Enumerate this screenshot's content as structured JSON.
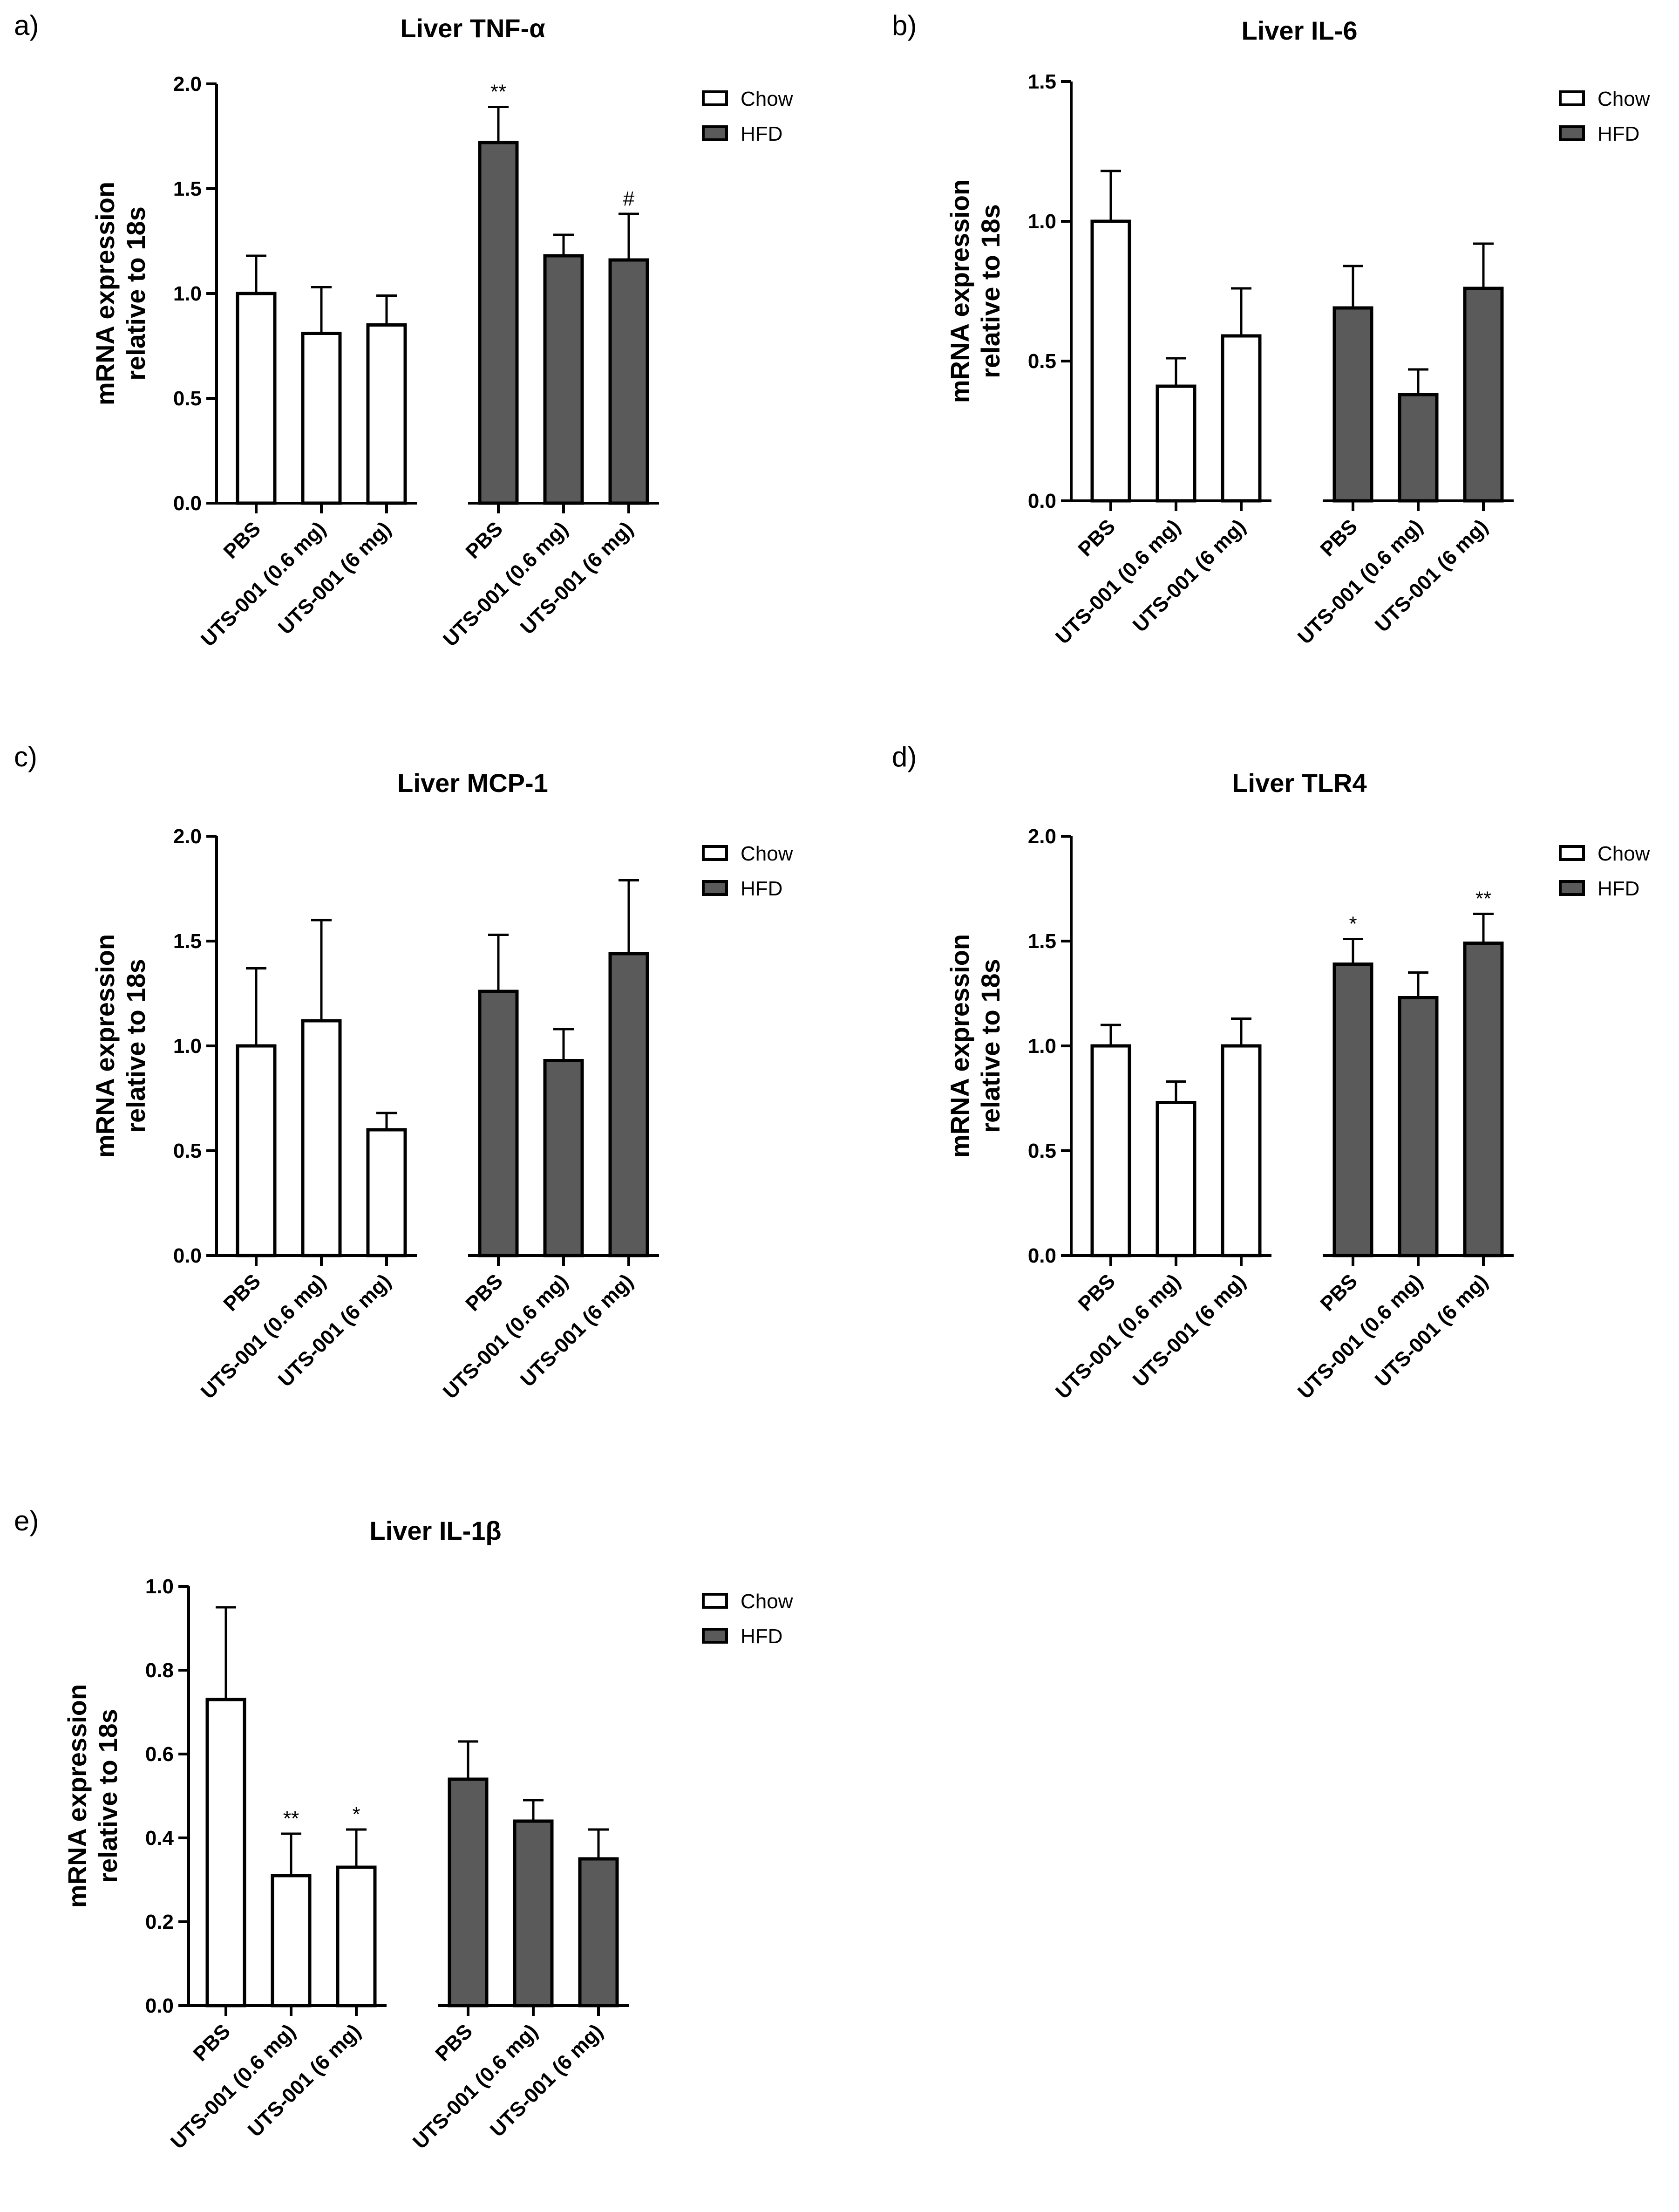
{
  "colors": {
    "chow": "#ffffff",
    "hfd": "#5a5a5a",
    "stroke": "#000000"
  },
  "legend": [
    "Chow",
    "HFD"
  ],
  "ylabel_line1": "mRNA expression",
  "ylabel_line2": "relative to 18s",
  "categories": [
    "PBS",
    "UTS-001 (0.6 mg)",
    "UTS-001 (6 mg)",
    "PBS",
    "UTS-001 (0.6 mg)",
    "UTS-001 (6 mg)"
  ],
  "chart_data": [
    {
      "type": "bar",
      "panel": "a)",
      "title": "Liver TNF-α",
      "ylim": [
        0,
        2.0
      ],
      "yticks": [
        "0.0",
        "0.5",
        "1.0",
        "1.5",
        "2.0"
      ],
      "series": [
        {
          "name": "Chow",
          "values": [
            1.0,
            0.81,
            0.85
          ],
          "errors": [
            0.18,
            0.22,
            0.14
          ],
          "sig": [
            "",
            "",
            ""
          ]
        },
        {
          "name": "HFD",
          "values": [
            1.72,
            1.18,
            1.16
          ],
          "errors": [
            0.17,
            0.1,
            0.22
          ],
          "sig": [
            "**",
            "",
            "#"
          ]
        }
      ]
    },
    {
      "type": "bar",
      "panel": "b)",
      "title": "Liver IL-6",
      "ylim": [
        0,
        1.5
      ],
      "yticks": [
        "0.0",
        "0.5",
        "1.0",
        "1.5"
      ],
      "series": [
        {
          "name": "Chow",
          "values": [
            1.0,
            0.41,
            0.59
          ],
          "errors": [
            0.18,
            0.1,
            0.17
          ],
          "sig": [
            "",
            "",
            ""
          ]
        },
        {
          "name": "HFD",
          "values": [
            0.69,
            0.38,
            0.76
          ],
          "errors": [
            0.15,
            0.09,
            0.16
          ],
          "sig": [
            "",
            "",
            ""
          ]
        }
      ]
    },
    {
      "type": "bar",
      "panel": "c)",
      "title": "Liver MCP-1",
      "ylim": [
        0,
        2.0
      ],
      "yticks": [
        "0.0",
        "0.5",
        "1.0",
        "1.5",
        "2.0"
      ],
      "series": [
        {
          "name": "Chow",
          "values": [
            1.0,
            1.12,
            0.6
          ],
          "errors": [
            0.37,
            0.48,
            0.08
          ],
          "sig": [
            "",
            "",
            ""
          ]
        },
        {
          "name": "HFD",
          "values": [
            1.26,
            0.93,
            1.44
          ],
          "errors": [
            0.27,
            0.15,
            0.35
          ],
          "sig": [
            "",
            "",
            ""
          ]
        }
      ]
    },
    {
      "type": "bar",
      "panel": "d)",
      "title": "Liver TLR4",
      "ylim": [
        0,
        2.0
      ],
      "yticks": [
        "0.0",
        "0.5",
        "1.0",
        "1.5",
        "2.0"
      ],
      "series": [
        {
          "name": "Chow",
          "values": [
            1.0,
            0.73,
            1.0
          ],
          "errors": [
            0.1,
            0.1,
            0.13
          ],
          "sig": [
            "",
            "",
            ""
          ]
        },
        {
          "name": "HFD",
          "values": [
            1.39,
            1.23,
            1.49
          ],
          "errors": [
            0.12,
            0.12,
            0.14
          ],
          "sig": [
            "*",
            "",
            "**"
          ]
        }
      ]
    },
    {
      "type": "bar",
      "panel": "e)",
      "title": "Liver IL-1β",
      "ylim": [
        0,
        1.0
      ],
      "yticks": [
        "0.0",
        "0.2",
        "0.4",
        "0.6",
        "0.8",
        "1.0"
      ],
      "series": [
        {
          "name": "Chow",
          "values": [
            0.73,
            0.31,
            0.33
          ],
          "errors": [
            0.22,
            0.1,
            0.09
          ],
          "sig": [
            "",
            "**",
            "*"
          ]
        },
        {
          "name": "HFD",
          "values": [
            0.54,
            0.44,
            0.35
          ],
          "errors": [
            0.09,
            0.05,
            0.07
          ],
          "sig": [
            "",
            "",
            ""
          ]
        }
      ]
    }
  ]
}
